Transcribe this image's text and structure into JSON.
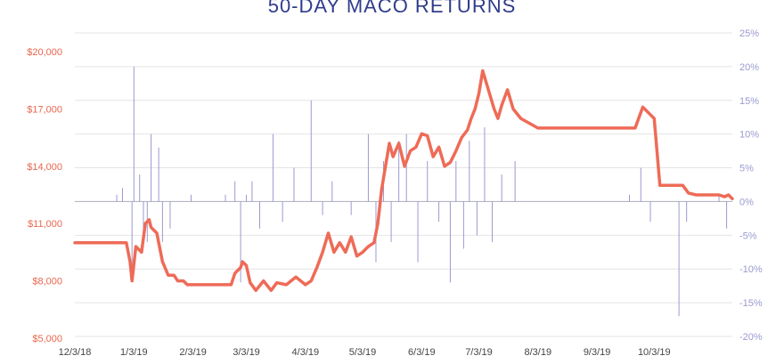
{
  "chart_data": {
    "type": "line",
    "title": "50-DAY MACO RETURNS",
    "x_ticks": [
      "12/3/18",
      "1/3/19",
      "2/3/19",
      "3/3/19",
      "4/3/19",
      "5/3/19",
      "6/3/19",
      "7/3/19",
      "8/3/19",
      "9/3/19",
      "10/3/19"
    ],
    "left_axis": {
      "min": 5000,
      "max": 20000,
      "ticks": [
        "$5,000",
        "$8,000",
        "$11,000",
        "$14,000",
        "$17,000",
        "$20,000"
      ]
    },
    "right_axis": {
      "min": -20,
      "max": 25,
      "ticks": [
        "-20%",
        "-15%",
        "-10%",
        "-5%",
        "0%",
        "5%",
        "10%",
        "15%",
        "20%",
        "25%"
      ]
    },
    "grid": true,
    "colors": {
      "equity": "#ee6b57",
      "returns": "#9a9ad0",
      "title": "#2f3b8c"
    },
    "series": [
      {
        "kind": "equity_line",
        "axis": "left",
        "x": [
          "2018-12-03",
          "2018-12-30",
          "2019-01-01",
          "2019-01-02",
          "2019-01-04",
          "2019-01-07",
          "2019-01-09",
          "2019-01-11",
          "2019-01-12",
          "2019-01-15",
          "2019-01-18",
          "2019-01-21",
          "2019-01-24",
          "2019-01-26",
          "2019-01-29",
          "2019-01-31",
          "2019-02-04",
          "2019-02-08",
          "2019-02-15",
          "2019-02-23",
          "2019-02-25",
          "2019-02-28",
          "2019-03-01",
          "2019-03-03",
          "2019-03-05",
          "2019-03-08",
          "2019-03-12",
          "2019-03-16",
          "2019-03-19",
          "2019-03-24",
          "2019-03-29",
          "2019-04-03",
          "2019-04-06",
          "2019-04-09",
          "2019-04-12",
          "2019-04-15",
          "2019-04-18",
          "2019-04-21",
          "2019-04-24",
          "2019-04-27",
          "2019-04-30",
          "2019-05-03",
          "2019-05-06",
          "2019-05-09",
          "2019-05-11",
          "2019-05-13",
          "2019-05-15",
          "2019-05-17",
          "2019-05-19",
          "2019-05-22",
          "2019-05-25",
          "2019-05-28",
          "2019-05-31",
          "2019-06-03",
          "2019-06-06",
          "2019-06-09",
          "2019-06-12",
          "2019-06-15",
          "2019-06-18",
          "2019-06-21",
          "2019-06-24",
          "2019-06-27",
          "2019-06-29",
          "2019-07-01",
          "2019-07-03",
          "2019-07-05",
          "2019-07-08",
          "2019-07-11",
          "2019-07-13",
          "2019-07-15",
          "2019-07-18",
          "2019-07-21",
          "2019-07-25",
          "2019-08-03",
          "2019-09-03",
          "2019-09-23",
          "2019-09-27",
          "2019-10-01",
          "2019-10-03",
          "2019-10-06",
          "2019-10-09",
          "2019-10-12",
          "2019-10-15",
          "2019-10-18",
          "2019-10-21",
          "2019-10-25",
          "2019-10-29",
          "2019-11-02",
          "2019-11-06",
          "2019-11-09",
          "2019-11-11",
          "2019-11-13"
        ],
        "y": [
          10000,
          10000,
          9000,
          8000,
          9800,
          9500,
          11000,
          11200,
          10800,
          10500,
          9000,
          8300,
          8300,
          8000,
          8000,
          7800,
          7800,
          7800,
          7800,
          7800,
          8400,
          8700,
          9000,
          8800,
          7900,
          7500,
          8000,
          7500,
          7900,
          7800,
          8200,
          7800,
          8000,
          8700,
          9500,
          10500,
          9500,
          10000,
          9500,
          10300,
          9300,
          9500,
          9800,
          10000,
          11000,
          12800,
          14000,
          15200,
          14500,
          15200,
          14000,
          14800,
          15000,
          15700,
          15600,
          14500,
          15000,
          14000,
          14200,
          14800,
          15500,
          15900,
          16500,
          17000,
          17800,
          19000,
          18000,
          17000,
          16500,
          17200,
          18000,
          17000,
          16500,
          16000,
          16000,
          16000,
          17100,
          16700,
          16500,
          13000,
          13000,
          13000,
          13000,
          13000,
          12600,
          12500,
          12500,
          12500,
          12500,
          12400,
          12500,
          12300
        ]
      },
      {
        "kind": "daily_returns",
        "axis": "right",
        "x": [
          "2018-12-25",
          "2018-12-28",
          "2019-01-02",
          "2019-01-03",
          "2019-01-06",
          "2019-01-08",
          "2019-01-10",
          "2019-01-12",
          "2019-01-16",
          "2019-01-18",
          "2019-01-22",
          "2019-02-02",
          "2019-02-20",
          "2019-02-25",
          "2019-02-28",
          "2019-03-03",
          "2019-03-06",
          "2019-03-10",
          "2019-03-17",
          "2019-03-22",
          "2019-03-28",
          "2019-04-06",
          "2019-04-12",
          "2019-04-17",
          "2019-04-27",
          "2019-05-06",
          "2019-05-10",
          "2019-05-14",
          "2019-05-18",
          "2019-05-22",
          "2019-05-26",
          "2019-06-01",
          "2019-06-06",
          "2019-06-12",
          "2019-06-18",
          "2019-06-21",
          "2019-06-25",
          "2019-06-28",
          "2019-07-02",
          "2019-07-06",
          "2019-07-10",
          "2019-07-15",
          "2019-07-22",
          "2019-09-20",
          "2019-09-26",
          "2019-10-01",
          "2019-10-16",
          "2019-10-20",
          "2019-11-06",
          "2019-11-10"
        ],
        "y": [
          1,
          2,
          -11,
          20,
          4,
          -4,
          -6,
          10,
          8,
          -6,
          -4,
          1,
          1,
          3,
          -12,
          1,
          3,
          -4,
          10,
          -3,
          5,
          15,
          -2,
          3,
          -2,
          10,
          -9,
          6,
          -6,
          9,
          10,
          -9,
          6,
          -3,
          -12,
          6,
          -7,
          9,
          -5,
          11,
          -6,
          4,
          6,
          1,
          5,
          -3,
          -17,
          -3,
          1,
          -4
        ]
      }
    ]
  }
}
